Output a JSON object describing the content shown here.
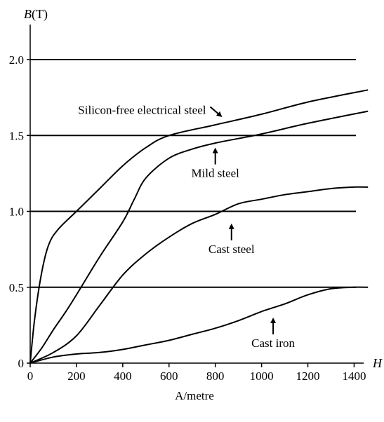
{
  "chart_data": {
    "type": "line",
    "title": "",
    "ylabel_var": "B",
    "ylabel_unit": "(T)",
    "xlabel_var": "H",
    "xlabel": "A/metre",
    "xlim": [
      0,
      1480
    ],
    "ylim": [
      0,
      2.0
    ],
    "xticks": [
      {
        "value": 0,
        "label": "0"
      },
      {
        "value": 200,
        "label": "200"
      },
      {
        "value": 400,
        "label": "400"
      },
      {
        "value": 600,
        "label": "600"
      },
      {
        "value": 800,
        "label": "800"
      },
      {
        "value": 1000,
        "label": "1000"
      },
      {
        "value": 1200,
        "label": "1200"
      },
      {
        "value": 1400,
        "label": "1400"
      }
    ],
    "yticks": [
      {
        "value": 0,
        "label": "0"
      },
      {
        "value": 0.5,
        "label": "0.5"
      },
      {
        "value": 1.0,
        "label": "1.0"
      },
      {
        "value": 1.5,
        "label": "1.5"
      },
      {
        "value": 2.0,
        "label": "2.0"
      }
    ],
    "gridlines_y": [
      0.5,
      1.0,
      1.5,
      2.0
    ],
    "series": [
      {
        "name": "Silicon-free electrical steel",
        "points": [
          [
            0,
            0
          ],
          [
            20,
            0.3
          ],
          [
            50,
            0.6
          ],
          [
            80,
            0.78
          ],
          [
            120,
            0.88
          ],
          [
            200,
            1.0
          ],
          [
            300,
            1.15
          ],
          [
            400,
            1.3
          ],
          [
            500,
            1.42
          ],
          [
            600,
            1.5
          ],
          [
            800,
            1.57
          ],
          [
            1000,
            1.64
          ],
          [
            1200,
            1.72
          ],
          [
            1460,
            1.8
          ]
        ]
      },
      {
        "name": "Mild steel",
        "points": [
          [
            0,
            0
          ],
          [
            50,
            0.1
          ],
          [
            100,
            0.22
          ],
          [
            150,
            0.33
          ],
          [
            200,
            0.45
          ],
          [
            300,
            0.7
          ],
          [
            400,
            0.93
          ],
          [
            450,
            1.08
          ],
          [
            500,
            1.22
          ],
          [
            600,
            1.35
          ],
          [
            700,
            1.41
          ],
          [
            800,
            1.45
          ],
          [
            1000,
            1.51
          ],
          [
            1200,
            1.58
          ],
          [
            1460,
            1.66
          ]
        ]
      },
      {
        "name": "Cast steel",
        "points": [
          [
            0,
            0
          ],
          [
            100,
            0.07
          ],
          [
            200,
            0.18
          ],
          [
            300,
            0.38
          ],
          [
            400,
            0.58
          ],
          [
            500,
            0.72
          ],
          [
            600,
            0.83
          ],
          [
            700,
            0.92
          ],
          [
            800,
            0.98
          ],
          [
            900,
            1.05
          ],
          [
            1000,
            1.08
          ],
          [
            1100,
            1.11
          ],
          [
            1200,
            1.13
          ],
          [
            1300,
            1.15
          ],
          [
            1400,
            1.16
          ],
          [
            1460,
            1.16
          ]
        ]
      },
      {
        "name": "Cast iron",
        "points": [
          [
            0,
            0
          ],
          [
            100,
            0.04
          ],
          [
            200,
            0.06
          ],
          [
            300,
            0.07
          ],
          [
            400,
            0.09
          ],
          [
            500,
            0.12
          ],
          [
            600,
            0.15
          ],
          [
            700,
            0.19
          ],
          [
            800,
            0.23
          ],
          [
            900,
            0.28
          ],
          [
            1000,
            0.34
          ],
          [
            1100,
            0.39
          ],
          [
            1200,
            0.45
          ],
          [
            1300,
            0.49
          ],
          [
            1400,
            0.5
          ],
          [
            1460,
            0.5
          ]
        ]
      }
    ],
    "annotations": [
      {
        "text": "Silicon-free electrical steel",
        "series": "Silicon-free electrical steel",
        "at": [
          760,
          1.67
        ],
        "arrow": "down-right"
      },
      {
        "text": "Mild steel",
        "series": "Mild steel",
        "at": [
          800,
          1.3
        ],
        "arrow": "up"
      },
      {
        "text": "Cast steel",
        "series": "Cast steel",
        "at": [
          870,
          0.8
        ],
        "arrow": "up"
      },
      {
        "text": "Cast iron",
        "series": "Cast iron",
        "at": [
          1050,
          0.18
        ],
        "arrow": "up"
      }
    ]
  }
}
